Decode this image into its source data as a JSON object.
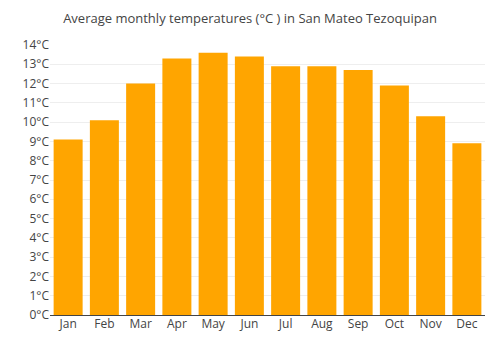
{
  "chart_data": {
    "type": "bar",
    "title": "Average monthly temperatures (°C ) in San Mateo Tezoquipan",
    "categories": [
      "Jan",
      "Feb",
      "Mar",
      "Apr",
      "May",
      "Jun",
      "Jul",
      "Aug",
      "Sep",
      "Oct",
      "Nov",
      "Dec"
    ],
    "values": [
      9.1,
      10.1,
      12.0,
      13.3,
      13.6,
      13.4,
      12.9,
      12.9,
      12.7,
      11.9,
      10.3,
      8.9
    ],
    "color": "#FFA500",
    "ylim": [
      0,
      14
    ],
    "yticks": [
      {
        "value": 0,
        "label": "0°C"
      },
      {
        "value": 1,
        "label": "1°C"
      },
      {
        "value": 2,
        "label": "2°C"
      },
      {
        "value": 3,
        "label": "3°C"
      },
      {
        "value": 4,
        "label": "4°C"
      },
      {
        "value": 5,
        "label": "5°C"
      },
      {
        "value": 6,
        "label": "6°C"
      },
      {
        "value": 7,
        "label": "7°C"
      },
      {
        "value": 8,
        "label": "8°C"
      },
      {
        "value": 9,
        "label": "9°C"
      },
      {
        "value": 10,
        "label": "10°C"
      },
      {
        "value": 11,
        "label": "11°C"
      },
      {
        "value": 12,
        "label": "12°C"
      },
      {
        "value": 13,
        "label": "13°C"
      },
      {
        "value": 14,
        "label": "14°C"
      }
    ],
    "grid": true
  }
}
